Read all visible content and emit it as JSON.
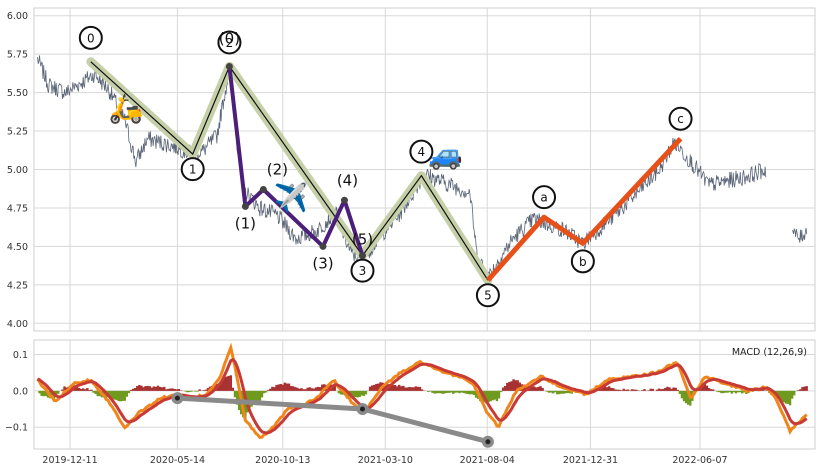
{
  "chart_data": [
    {
      "type": "line",
      "panel": "price",
      "x_range": [
        "2019-10-20",
        "2022-11-20"
      ],
      "ylim": [
        3.95,
        6.05
      ],
      "yticks": [
        4.0,
        4.25,
        4.5,
        4.75,
        5.0,
        5.25,
        5.5,
        5.75,
        6.0
      ],
      "ytick_labels": [
        "4.00",
        "4.25",
        "4.50",
        "4.75",
        "5.00",
        "5.25",
        "5.50",
        "5.75",
        "6.00"
      ],
      "xticks": [
        "2019-12-11",
        "2020-05-14",
        "2020-10-13",
        "2021-03-10",
        "2021-08-04",
        "2021-12-31",
        "2022-06-07"
      ],
      "xtick_labels": [
        "2019-12-11",
        "2020-05-14",
        "2020-10-13",
        "2021-03-10",
        "2021-08-04",
        "2021-12-31",
        "2022-06-07"
      ],
      "grid": true,
      "colors": {
        "price": "#5a6577",
        "impulse": "#c5cfa8",
        "sub_wave": "#4b1f7a",
        "correction": "#e8501a",
        "connector": "#111111"
      },
      "price_anchors": [
        [
          "2019-10-25",
          5.72
        ],
        [
          "2019-11-10",
          5.55
        ],
        [
          "2019-12-05",
          5.5
        ],
        [
          "2020-01-15",
          5.62
        ],
        [
          "2020-02-05",
          5.52
        ],
        [
          "2020-02-28",
          5.32
        ],
        [
          "2020-03-15",
          5.05
        ],
        [
          "2020-04-01",
          5.2
        ],
        [
          "2020-05-10",
          5.15
        ],
        [
          "2020-06-05",
          5.1
        ],
        [
          "2020-06-20",
          5.12
        ],
        [
          "2020-07-10",
          5.22
        ],
        [
          "2020-07-28",
          5.66
        ],
        [
          "2020-08-15",
          4.88
        ],
        [
          "2020-09-10",
          4.75
        ],
        [
          "2020-10-05",
          4.7
        ],
        [
          "2020-11-01",
          4.55
        ],
        [
          "2020-12-01",
          4.6
        ],
        [
          "2020-12-28",
          4.72
        ],
        [
          "2021-01-20",
          4.45
        ],
        [
          "2021-02-05",
          4.42
        ],
        [
          "2021-03-05",
          4.58
        ],
        [
          "2021-04-01",
          4.72
        ],
        [
          "2021-05-05",
          4.97
        ],
        [
          "2021-06-01",
          4.92
        ],
        [
          "2021-07-10",
          4.85
        ],
        [
          "2021-07-20",
          4.45
        ],
        [
          "2021-08-05",
          4.3
        ],
        [
          "2021-09-10",
          4.55
        ],
        [
          "2021-10-10",
          4.68
        ],
        [
          "2021-11-25",
          4.6
        ],
        [
          "2021-12-20",
          4.52
        ],
        [
          "2022-02-15",
          4.75
        ],
        [
          "2022-04-10",
          5.0
        ],
        [
          "2022-05-01",
          5.18
        ],
        [
          "2022-05-25",
          5.05
        ],
        [
          "2022-06-20",
          4.9
        ],
        [
          "2022-08-10",
          4.95
        ],
        [
          "2022-09-10",
          5.0
        ]
      ],
      "price_tail": [
        [
          "2022-10-18",
          4.6
        ],
        [
          "2022-10-28",
          4.55
        ],
        [
          "2022-11-08",
          4.6
        ]
      ],
      "impulse_waves": [
        {
          "label": "0",
          "date": "2020-01-10",
          "value": 5.7,
          "label_side": "above"
        },
        {
          "label": "1",
          "date": "2020-06-05",
          "value": 5.1,
          "label_side": "below"
        },
        {
          "label": "2",
          "date": "2020-07-28",
          "value": 5.67,
          "label_side": "above"
        },
        {
          "label": "3",
          "date": "2021-02-05",
          "value": 4.44,
          "label_side": "below"
        },
        {
          "label": "4",
          "date": "2021-05-01",
          "value": 4.96,
          "label_side": "above"
        },
        {
          "label": "5",
          "date": "2021-08-05",
          "value": 4.28,
          "label_side": "below"
        }
      ],
      "sub_waves": [
        {
          "label": "(0)",
          "date": "2020-07-28",
          "value": 5.67
        },
        {
          "label": "(1)",
          "date": "2020-08-20",
          "value": 4.76
        },
        {
          "label": "(2)",
          "date": "2020-09-15",
          "value": 4.87
        },
        {
          "label": "(3)",
          "date": "2020-12-10",
          "value": 4.5
        },
        {
          "label": "(4)",
          "date": "2021-01-10",
          "value": 4.8
        },
        {
          "label": "(5)",
          "date": "2021-02-05",
          "value": 4.44
        }
      ],
      "correction_waves": [
        {
          "label": "",
          "date": "2021-08-05",
          "value": 4.28
        },
        {
          "label": "a",
          "date": "2021-10-25",
          "value": 4.69
        },
        {
          "label": "b",
          "date": "2021-12-20",
          "value": 4.52
        },
        {
          "label": "c",
          "date": "2022-05-10",
          "value": 5.2
        }
      ],
      "icons": [
        {
          "name": "scooter-icon",
          "glyph": "🛵",
          "date": "2020-03-01",
          "value": 5.4
        },
        {
          "name": "airplane-icon",
          "glyph": "✈️",
          "date": "2020-10-25",
          "value": 4.82
        },
        {
          "name": "car-icon",
          "glyph": "🚙",
          "date": "2021-06-05",
          "value": 5.1
        }
      ]
    },
    {
      "type": "line",
      "panel": "macd",
      "title": "MACD (12,26,9)",
      "ylim": [
        -0.16,
        0.14
      ],
      "yticks": [
        -0.1,
        0.0,
        0.1
      ],
      "ytick_labels": [
        "−0.1",
        "0.0",
        "0.1"
      ],
      "grid": true,
      "colors": {
        "macd": "#f0851c",
        "signal": "#c83a35",
        "hist_pos": "#a83232",
        "hist_neg": "#6f9a1f",
        "divergence": "#8a8a8a"
      },
      "macd_anchors": [
        [
          "2019-10-25",
          0.03
        ],
        [
          "2019-11-20",
          -0.03
        ],
        [
          "2019-12-15",
          0.02
        ],
        [
          "2020-01-10",
          0.03
        ],
        [
          "2020-02-05",
          -0.03
        ],
        [
          "2020-02-28",
          -0.1
        ],
        [
          "2020-03-20",
          -0.06
        ],
        [
          "2020-04-20",
          -0.02
        ],
        [
          "2020-05-15",
          -0.01
        ],
        [
          "2020-06-05",
          -0.02
        ],
        [
          "2020-06-25",
          -0.01
        ],
        [
          "2020-07-15",
          0.04
        ],
        [
          "2020-07-30",
          0.12
        ],
        [
          "2020-08-20",
          -0.08
        ],
        [
          "2020-09-10",
          -0.13
        ],
        [
          "2020-09-30",
          -0.1
        ],
        [
          "2020-10-20",
          -0.05
        ],
        [
          "2020-11-10",
          -0.04
        ],
        [
          "2020-12-01",
          -0.02
        ],
        [
          "2020-12-25",
          0.03
        ],
        [
          "2021-01-20",
          -0.03
        ],
        [
          "2021-02-08",
          -0.06
        ],
        [
          "2021-03-05",
          0.01
        ],
        [
          "2021-04-01",
          0.05
        ],
        [
          "2021-05-01",
          0.08
        ],
        [
          "2021-06-01",
          0.05
        ],
        [
          "2021-06-25",
          0.04
        ],
        [
          "2021-07-15",
          0.02
        ],
        [
          "2021-08-01",
          -0.05
        ],
        [
          "2021-08-20",
          -0.1
        ],
        [
          "2021-09-15",
          0.0
        ],
        [
          "2021-10-20",
          0.04
        ],
        [
          "2021-11-20",
          0.01
        ],
        [
          "2021-12-25",
          -0.01
        ],
        [
          "2022-01-25",
          0.03
        ],
        [
          "2022-03-01",
          0.04
        ],
        [
          "2022-04-05",
          0.05
        ],
        [
          "2022-05-05",
          0.08
        ],
        [
          "2022-05-25",
          -0.02
        ],
        [
          "2022-06-15",
          0.04
        ],
        [
          "2022-07-15",
          0.02
        ],
        [
          "2022-08-15",
          0.0
        ],
        [
          "2022-09-10",
          0.01
        ],
        [
          "2022-09-25",
          -0.02
        ],
        [
          "2022-10-15",
          -0.11
        ],
        [
          "2022-11-10",
          -0.06
        ]
      ],
      "divergence": [
        {
          "date": "2020-05-14",
          "value": -0.02
        },
        {
          "date": "2021-02-05",
          "value": -0.05
        },
        {
          "date": "2021-08-05",
          "value": -0.14
        }
      ]
    }
  ]
}
